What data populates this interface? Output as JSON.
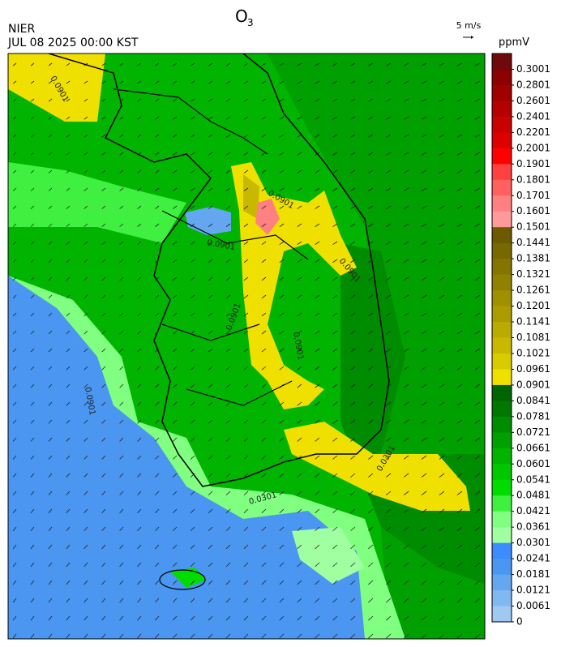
{
  "header": {
    "title": {
      "base": "O",
      "subscript": "3"
    },
    "source": "NIER",
    "datetime": "JUL 08 2025 00:00 KST",
    "wind_scale": "5 m/s"
  },
  "colorbar": {
    "unit": "ppmV",
    "levels": [
      0.3001,
      0.2801,
      0.2601,
      0.2401,
      0.2201,
      0.2001,
      0.1901,
      0.1801,
      0.1701,
      0.1601,
      0.1501,
      0.1441,
      0.1381,
      0.1321,
      0.1261,
      0.1201,
      0.1141,
      0.1081,
      0.1021,
      0.0961,
      0.0901,
      0.0841,
      0.0781,
      0.0721,
      0.0661,
      0.0601,
      0.0541,
      0.0481,
      0.0421,
      0.0361,
      0.0301,
      0.0241,
      0.0181,
      0.0121,
      0.0061,
      0
    ],
    "colors": [
      "#6e0a0a",
      "#8b0000",
      "#a00000",
      "#b40000",
      "#c80000",
      "#dc0000",
      "#ff0000",
      "#ff4040",
      "#ff6060",
      "#ff8080",
      "#ff9a9a",
      "#6b5a00",
      "#786800",
      "#857400",
      "#928000",
      "#a09000",
      "#ad9c00",
      "#baab00",
      "#c8b800",
      "#d8cb00",
      "#f0e000",
      "#006400",
      "#007800",
      "#008c00",
      "#00a000",
      "#00b400",
      "#00c800",
      "#00dc00",
      "#40f040",
      "#80ff80",
      "#a0ffa0",
      "#3c8cff",
      "#4a96f0",
      "#64a6f0",
      "#80b8f0",
      "#a0c8f0"
    ]
  },
  "map": {
    "contour_labels": [
      "0.0901",
      "0.0901",
      "0.0901",
      "0.0901",
      "0.0901",
      "0.0901",
      "0.0901",
      "0.0301",
      "0.0301"
    ]
  }
}
